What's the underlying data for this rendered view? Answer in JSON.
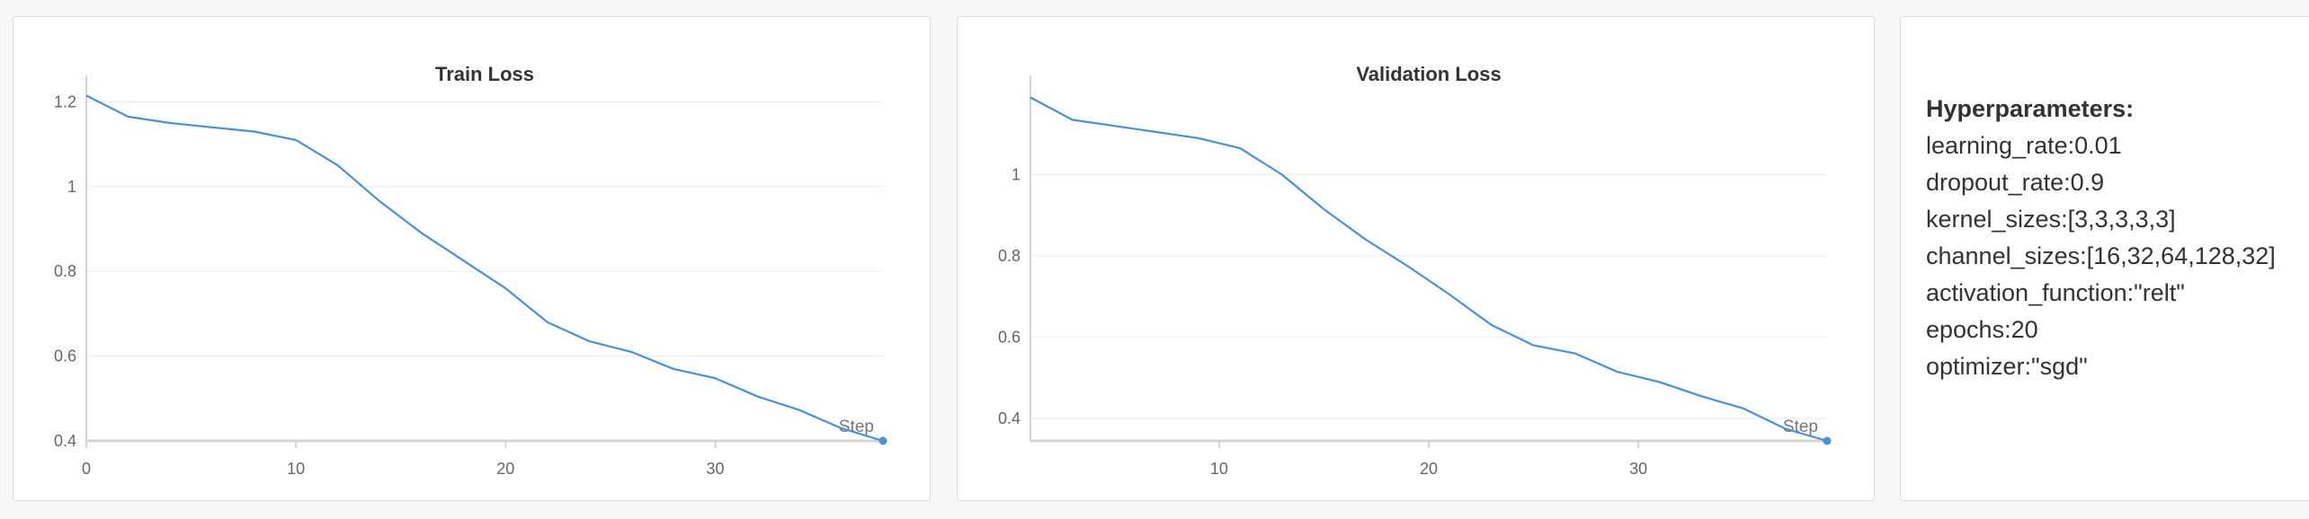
{
  "colors": {
    "line": "#4a90d9",
    "grid": "#ebebeb",
    "axis": "#d4d4d4"
  },
  "chart_data": [
    {
      "type": "line",
      "title": "Train Loss",
      "xlabel": "Step",
      "ylabel": "",
      "xlim": [
        0,
        38
      ],
      "ylim": [
        0.4,
        1.22
      ],
      "xticks": [
        0,
        10,
        20,
        30
      ],
      "yticks": [
        0.4,
        0.6,
        0.8,
        1,
        1.2
      ],
      "ytick_labels": [
        "0.4",
        "0.6",
        "0.8",
        "1",
        "1.2"
      ],
      "grid": true,
      "series": [
        {
          "x": [
            0,
            2,
            4,
            6,
            8,
            10,
            12,
            14,
            16,
            18,
            20,
            22,
            24,
            26,
            28,
            30,
            32,
            34,
            36,
            38
          ],
          "y": [
            1.215,
            1.165,
            1.15,
            1.14,
            1.13,
            1.11,
            1.05,
            0.965,
            0.89,
            0.825,
            0.76,
            0.68,
            0.635,
            0.61,
            0.57,
            0.548,
            0.505,
            0.473,
            0.43,
            0.4
          ]
        }
      ]
    },
    {
      "type": "line",
      "title": "Validation Loss",
      "xlabel": "Step",
      "ylabel": "",
      "xlim": [
        1,
        39
      ],
      "ylim": [
        0.345,
        1.2
      ],
      "xticks": [
        10,
        20,
        30
      ],
      "yticks": [
        0.4,
        0.6,
        0.8,
        1
      ],
      "ytick_labels": [
        "0.4",
        "0.6",
        "0.8",
        "1"
      ],
      "grid": true,
      "series": [
        {
          "x": [
            1,
            3,
            5,
            7,
            9,
            11,
            13,
            15,
            17,
            19,
            21,
            23,
            25,
            27,
            29,
            31,
            33,
            35,
            37,
            39
          ],
          "y": [
            1.19,
            1.135,
            1.12,
            1.105,
            1.09,
            1.065,
            1.0,
            0.915,
            0.84,
            0.775,
            0.705,
            0.63,
            0.58,
            0.56,
            0.515,
            0.49,
            0.455,
            0.425,
            0.375,
            0.345
          ]
        }
      ]
    }
  ],
  "hyperparameters": {
    "title": "Hyperparameters:",
    "rows": [
      "learning_rate:0.01",
      "dropout_rate:0.9",
      "kernel_sizes:[3,3,3,3,3]",
      "channel_sizes:[16,32,64,128,32]",
      "activation_function:\"relt\"",
      "epochs:20",
      "optimizer:\"sgd\""
    ]
  }
}
